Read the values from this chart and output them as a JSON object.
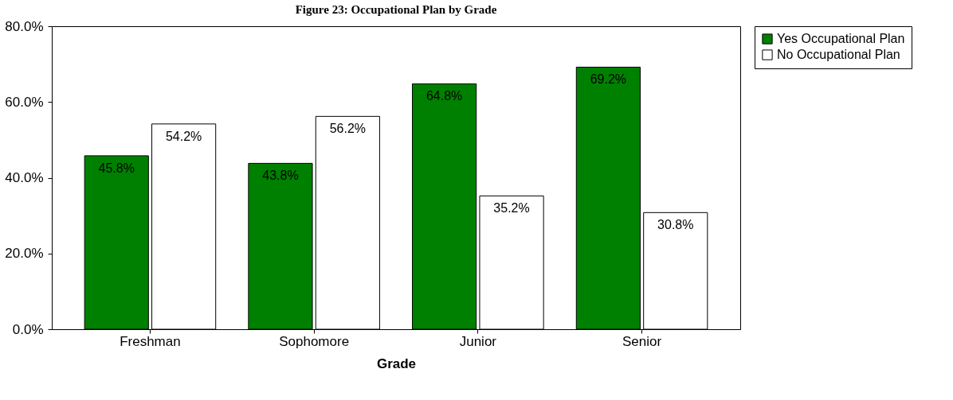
{
  "chart_data": {
    "type": "bar",
    "title": "Figure 23: Occupational Plan by Grade",
    "xlabel": "Grade",
    "categories": [
      "Freshman",
      "Sophomore",
      "Junior",
      "Senior"
    ],
    "series": [
      {
        "name": "Yes Occupational Plan",
        "color": "#008000",
        "values": [
          45.8,
          43.8,
          64.8,
          69.2
        ],
        "value_labels": [
          "45.8%",
          "43.8%",
          "64.8%",
          "69.2%"
        ]
      },
      {
        "name": "No Occupational Plan",
        "color": "#ffffff",
        "values": [
          54.2,
          56.2,
          35.2,
          30.8
        ],
        "value_labels": [
          "54.2%",
          "56.2%",
          "35.2%",
          "30.8%"
        ]
      }
    ],
    "ylim": [
      0,
      80
    ],
    "yticks": [
      {
        "value": 0,
        "label": "0.0%"
      },
      {
        "value": 20,
        "label": "20.0%"
      },
      {
        "value": 40,
        "label": "40.0%"
      },
      {
        "value": 60,
        "label": "60.0%"
      },
      {
        "value": 80,
        "label": "80.0%"
      }
    ],
    "grid": false,
    "legend": "right"
  }
}
